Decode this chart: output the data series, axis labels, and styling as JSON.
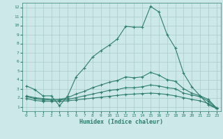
{
  "xlabel": "Humidex (Indice chaleur)",
  "background_color": "#cce8e8",
  "grid_color": "#aacccc",
  "line_color": "#2e7d6e",
  "xlim": [
    -0.5,
    23.5
  ],
  "ylim": [
    0.5,
    12.5
  ],
  "xticks": [
    0,
    1,
    2,
    3,
    4,
    5,
    6,
    7,
    8,
    9,
    10,
    11,
    12,
    13,
    14,
    15,
    16,
    17,
    18,
    19,
    20,
    21,
    22,
    23
  ],
  "yticks": [
    1,
    2,
    3,
    4,
    5,
    6,
    7,
    8,
    9,
    10,
    11,
    12
  ],
  "line1": {
    "x": [
      0,
      1,
      2,
      3,
      4,
      5,
      6,
      7,
      8,
      9,
      10,
      11,
      12,
      13,
      14,
      15,
      16,
      17,
      18,
      19,
      20,
      21,
      22,
      23
    ],
    "y": [
      3.3,
      2.9,
      2.2,
      2.2,
      1.1,
      2.2,
      4.3,
      5.3,
      6.5,
      7.2,
      7.8,
      8.5,
      9.9,
      9.8,
      9.8,
      12.1,
      11.5,
      9.0,
      7.5,
      4.7,
      3.2,
      2.2,
      1.2,
      0.8
    ]
  },
  "line2": {
    "x": [
      0,
      1,
      2,
      3,
      4,
      5,
      6,
      7,
      8,
      9,
      10,
      11,
      12,
      13,
      14,
      15,
      16,
      17,
      18,
      19,
      20,
      21,
      22,
      23
    ],
    "y": [
      2.2,
      2.0,
      1.9,
      1.8,
      1.8,
      2.0,
      2.4,
      2.7,
      3.1,
      3.4,
      3.7,
      3.9,
      4.3,
      4.2,
      4.3,
      4.8,
      4.5,
      4.0,
      3.8,
      3.0,
      2.5,
      2.2,
      1.8,
      0.85
    ]
  },
  "line3": {
    "x": [
      0,
      1,
      2,
      3,
      4,
      5,
      6,
      7,
      8,
      9,
      10,
      11,
      12,
      13,
      14,
      15,
      16,
      17,
      18,
      19,
      20,
      21,
      22,
      23
    ],
    "y": [
      2.1,
      1.9,
      1.75,
      1.75,
      1.75,
      1.8,
      2.0,
      2.2,
      2.4,
      2.6,
      2.8,
      2.9,
      3.1,
      3.1,
      3.2,
      3.4,
      3.3,
      3.1,
      3.0,
      2.5,
      2.3,
      2.1,
      1.6,
      0.8
    ]
  },
  "line4": {
    "x": [
      0,
      1,
      2,
      3,
      4,
      5,
      6,
      7,
      8,
      9,
      10,
      11,
      12,
      13,
      14,
      15,
      16,
      17,
      18,
      19,
      20,
      21,
      22,
      23
    ],
    "y": [
      1.9,
      1.7,
      1.6,
      1.6,
      1.6,
      1.65,
      1.75,
      1.85,
      1.95,
      2.05,
      2.15,
      2.25,
      2.35,
      2.4,
      2.45,
      2.5,
      2.45,
      2.35,
      2.2,
      2.0,
      1.8,
      1.65,
      1.35,
      0.8
    ]
  }
}
